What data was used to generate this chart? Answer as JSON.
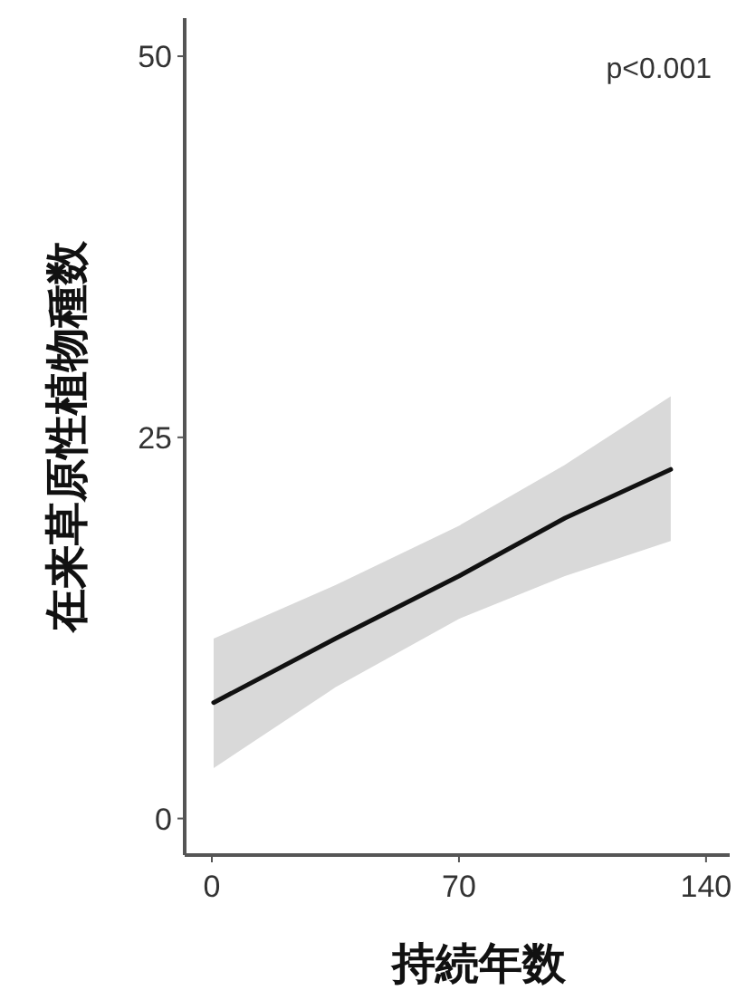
{
  "chart_data": {
    "type": "line",
    "xlabel": "持続年数",
    "ylabel": "在来草原性植物種数",
    "annotations": [
      "p<0.001"
    ],
    "xlim": [
      -7.7,
      146.7
    ],
    "ylim": [
      -2.4,
      52.5
    ],
    "xticks": [
      0,
      70,
      140
    ],
    "yticks": [
      0,
      25,
      50
    ],
    "grid": false,
    "marker": "none",
    "line_style": "solid",
    "series": [
      {
        "color": "#111111",
        "x": [
          0.5,
          35,
          70,
          100,
          130
        ],
        "values": [
          7.6,
          11.8,
          15.9,
          19.7,
          22.9
        ],
        "lower": [
          3.3,
          8.6,
          13.1,
          15.9,
          18.2
        ],
        "upper": [
          11.8,
          15.3,
          19.2,
          23.2,
          27.7
        ]
      }
    ]
  }
}
